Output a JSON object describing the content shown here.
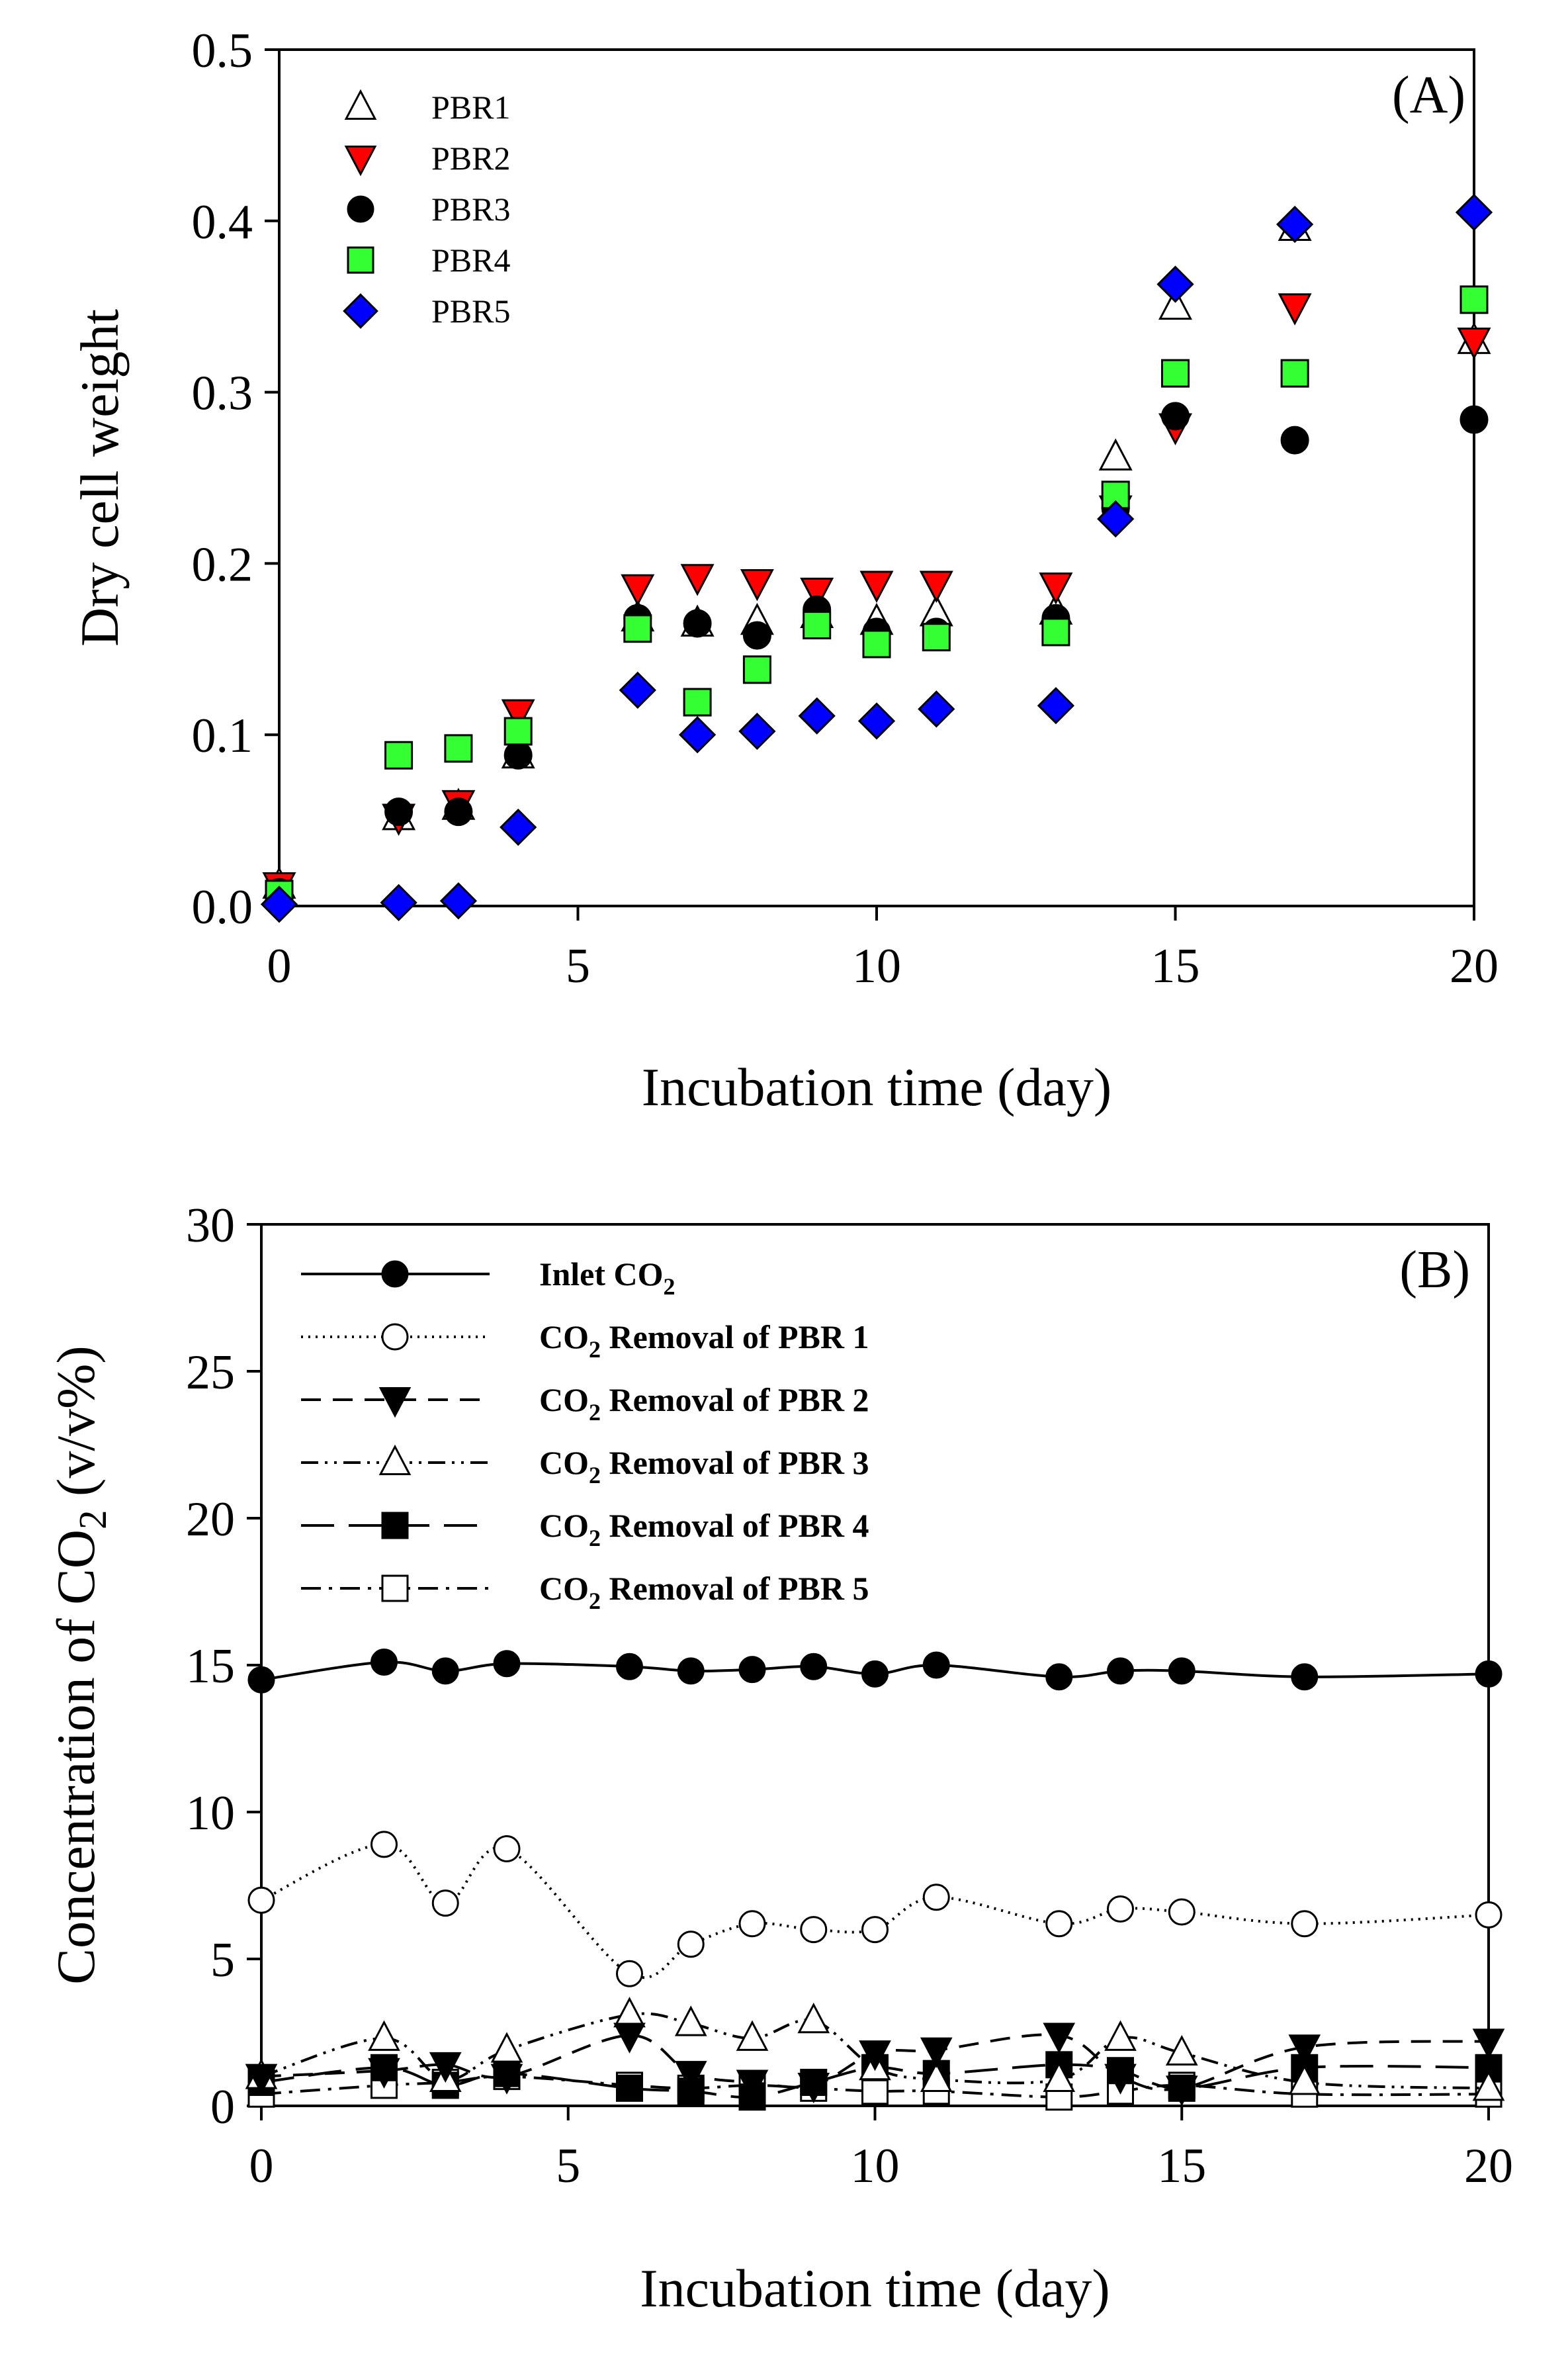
{
  "figure": {
    "chart_data": [
      {
        "type": "scatter",
        "panel_label": "(A)",
        "xlabel": "Incubation time (day)",
        "ylabel": "Dry cell weight",
        "xlim": [
          0,
          20
        ],
        "ylim": [
          0,
          0.5
        ],
        "xticks": [
          0,
          5,
          10,
          15,
          20
        ],
        "yticks": [
          0.0,
          0.1,
          0.2,
          0.3,
          0.4,
          0.5
        ],
        "ytick_labels": [
          "0.0",
          "0.1",
          "0.2",
          "0.3",
          "0.4",
          "0.5"
        ],
        "legend_position": "top-left",
        "series": [
          {
            "name": "PBR1",
            "marker": "triangle-up-open",
            "color": "#ffffff",
            "x": [
              0,
              2,
              3,
              4,
              6,
              7,
              8,
              9,
              10,
              11,
              13,
              14,
              15,
              17,
              20
            ],
            "y": [
              0.012,
              0.052,
              0.058,
              0.088,
              0.168,
              0.165,
              0.166,
              0.17,
              0.166,
              0.171,
              0.172,
              0.262,
              0.35,
              0.396,
              0.33
            ]
          },
          {
            "name": "PBR2",
            "marker": "triangle-down",
            "color": "#ff0000",
            "x": [
              0,
              2,
              3,
              4,
              6,
              7,
              8,
              9,
              10,
              11,
              13,
              14,
              15,
              17,
              20
            ],
            "y": [
              0.012,
              0.052,
              0.06,
              0.113,
              0.186,
              0.192,
              0.189,
              0.184,
              0.188,
              0.188,
              0.187,
              0.232,
              0.28,
              0.35,
              0.33
            ]
          },
          {
            "name": "PBR3",
            "marker": "circle",
            "color": "#000000",
            "x": [
              0,
              2,
              3,
              4,
              6,
              7,
              8,
              9,
              10,
              11,
              13,
              14,
              15,
              17,
              20
            ],
            "y": [
              0.008,
              0.055,
              0.055,
              0.088,
              0.168,
              0.165,
              0.158,
              0.173,
              0.16,
              0.16,
              0.168,
              0.232,
              0.286,
              0.272,
              0.284
            ]
          },
          {
            "name": "PBR4",
            "marker": "square",
            "color": "#33ff33",
            "x": [
              0,
              2,
              3,
              4,
              6,
              7,
              8,
              9,
              10,
              11,
              13,
              14,
              15,
              17,
              20
            ],
            "y": [
              0.007,
              0.088,
              0.092,
              0.102,
              0.162,
              0.119,
              0.138,
              0.164,
              0.153,
              0.157,
              0.16,
              0.24,
              0.311,
              0.311,
              0.354
            ]
          },
          {
            "name": "PBR5",
            "marker": "diamond",
            "color": "#0000ff",
            "x": [
              0,
              2,
              3,
              4,
              6,
              7,
              8,
              9,
              10,
              11,
              13,
              14,
              15,
              17,
              20
            ],
            "y": [
              0.001,
              0.002,
              0.003,
              0.046,
              0.126,
              0.1,
              0.102,
              0.111,
              0.108,
              0.115,
              0.117,
              0.226,
              0.363,
              0.398,
              0.405
            ]
          }
        ]
      },
      {
        "type": "line",
        "panel_label": "(B)",
        "xlabel": "Incubation time (day)",
        "ylabel_prefix": "Concentration of CO",
        "ylabel_subscript": "2",
        "ylabel_suffix": " (v/v%)",
        "xlim": [
          0,
          20
        ],
        "ylim": [
          0,
          30
        ],
        "xticks": [
          0,
          5,
          10,
          15,
          20
        ],
        "yticks": [
          0,
          5,
          10,
          15,
          20,
          25,
          30
        ],
        "legend_position": "top",
        "series": [
          {
            "label_pre": "Inlet CO",
            "label_sub": "2",
            "label_post": "",
            "marker": "circle",
            "color": "#000000",
            "line": "solid",
            "x": [
              0,
              2,
              3,
              4,
              6,
              7,
              8,
              9,
              10,
              11,
              13,
              14,
              15,
              17,
              20
            ],
            "y": [
              14.5,
              15.1,
              14.8,
              15.05,
              14.95,
              14.8,
              14.85,
              14.95,
              14.7,
              15.0,
              14.6,
              14.8,
              14.8,
              14.6,
              14.7
            ]
          },
          {
            "label_pre": "CO",
            "label_sub": "2",
            "label_post": " Removal of PBR 1",
            "marker": "circle-open",
            "color": "#ffffff",
            "line": "dotted",
            "x": [
              0,
              2,
              3,
              4,
              6,
              7,
              8,
              9,
              10,
              11,
              13,
              14,
              15,
              17,
              20
            ],
            "y": [
              7.0,
              8.9,
              6.9,
              8.75,
              4.5,
              5.5,
              6.2,
              6.0,
              6.0,
              7.1,
              6.2,
              6.7,
              6.6,
              6.2,
              6.5
            ]
          },
          {
            "label_pre": "CO",
            "label_sub": "2",
            "label_post": " Removal of PBR 2",
            "marker": "triangle-down",
            "color": "#000000",
            "line": "dashed",
            "x": [
              0,
              2,
              3,
              4,
              6,
              7,
              8,
              9,
              10,
              11,
              13,
              14,
              15,
              17,
              20
            ],
            "y": [
              1.0,
              1.2,
              1.4,
              1.0,
              2.4,
              1.1,
              0.8,
              0.7,
              1.8,
              1.9,
              2.4,
              1.0,
              0.6,
              2.0,
              2.2
            ]
          },
          {
            "label_pre": "CO",
            "label_sub": "2",
            "label_post": " Removal of PBR 3",
            "marker": "triangle-up-open",
            "color": "#ffffff",
            "line": "dash-dot-dot",
            "x": [
              0,
              2,
              3,
              4,
              6,
              7,
              8,
              9,
              10,
              11,
              13,
              14,
              15,
              17,
              20
            ],
            "y": [
              1.0,
              2.3,
              0.9,
              1.9,
              3.1,
              2.8,
              2.3,
              2.9,
              1.3,
              0.9,
              0.9,
              2.3,
              1.8,
              0.8,
              0.6
            ]
          },
          {
            "label_pre": "CO",
            "label_sub": "2",
            "label_post": " Removal of PBR 4",
            "marker": "square",
            "color": "#000000",
            "line": "long-dash",
            "x": [
              0,
              2,
              3,
              4,
              6,
              7,
              8,
              9,
              10,
              11,
              13,
              14,
              15,
              17,
              20
            ],
            "y": [
              0.8,
              1.3,
              0.7,
              1.1,
              0.6,
              0.5,
              0.3,
              0.8,
              1.3,
              1.1,
              1.4,
              1.2,
              0.6,
              1.3,
              1.3
            ]
          },
          {
            "label_pre": "CO",
            "label_sub": "2",
            "label_post": " Removal of PBR 5",
            "marker": "square-open",
            "color": "#ffffff",
            "line": "dash-dot",
            "x": [
              0,
              2,
              3,
              4,
              6,
              7,
              8,
              9,
              10,
              11,
              13,
              14,
              15,
              17,
              20
            ],
            "y": [
              0.4,
              0.7,
              0.8,
              1.0,
              0.7,
              0.6,
              0.7,
              0.6,
              0.5,
              0.5,
              0.3,
              0.5,
              0.7,
              0.4,
              0.4
            ]
          }
        ]
      }
    ]
  }
}
